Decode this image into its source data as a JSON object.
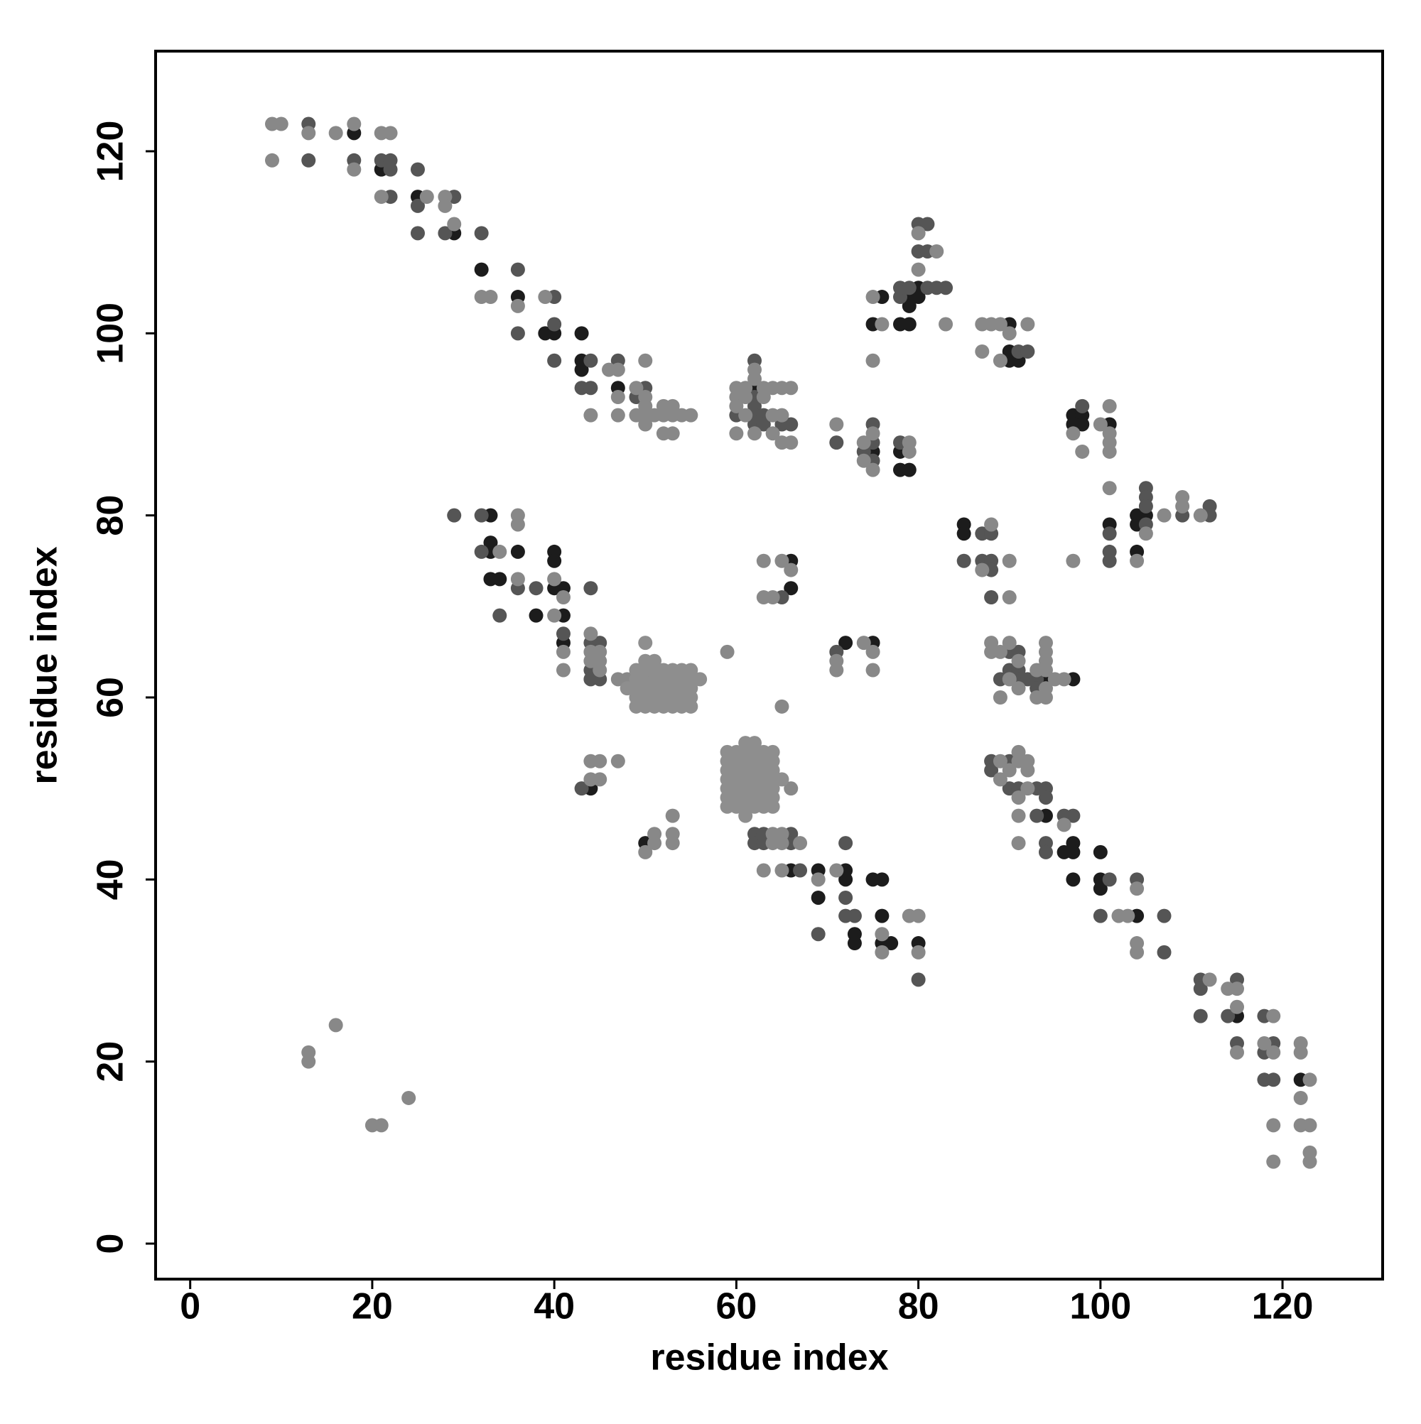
{
  "chart_data": {
    "type": "scatter",
    "xlabel": "residue index",
    "ylabel": "residue index",
    "xlim": [
      -3.8,
      131
    ],
    "ylim": [
      -3.9,
      131
    ],
    "xticks": [
      0,
      20,
      40,
      60,
      80,
      100,
      120
    ],
    "yticks": [
      0,
      20,
      40,
      60,
      80,
      100,
      120
    ],
    "series": [
      {
        "color": "#1c1c1c",
        "x": [
          18,
          21,
          25,
          29,
          32,
          36,
          39,
          40,
          43,
          43,
          43,
          47,
          62,
          76,
          80,
          79,
          80,
          79,
          75,
          78,
          79,
          75,
          78,
          78,
          79,
          90,
          90,
          90,
          91,
          97,
          98,
          97,
          98,
          101,
          104,
          105,
          101,
          104,
          104,
          33,
          33,
          33,
          36,
          40,
          40,
          33,
          34,
          40,
          41,
          38,
          41,
          41,
          66,
          66,
          72,
          75,
          85,
          85,
          94,
          97,
          44,
          50,
          66,
          69,
          72,
          72,
          75,
          76,
          69,
          76,
          73,
          73,
          76,
          77,
          80,
          94,
          97,
          96,
          97,
          100,
          97,
          100,
          100,
          104,
          115,
          122
        ],
        "values": [
          122,
          118,
          115,
          111,
          107,
          104,
          100,
          100,
          100,
          97,
          96,
          94,
          94,
          104,
          105,
          104,
          104,
          103,
          101,
          101,
          101,
          87,
          87,
          85,
          85,
          101,
          98,
          97,
          97,
          91,
          91,
          90,
          90,
          90,
          80,
          80,
          79,
          79,
          76,
          80,
          77,
          76,
          76,
          76,
          75,
          73,
          73,
          72,
          72,
          69,
          69,
          66,
          75,
          72,
          66,
          66,
          79,
          78,
          62,
          62,
          50,
          44,
          41,
          41,
          41,
          40,
          40,
          40,
          38,
          36,
          34,
          33,
          33,
          33,
          33,
          47,
          44,
          43,
          43,
          43,
          40,
          40,
          39,
          36,
          25,
          18
        ]
      },
      {
        "color": "#555555",
        "x": [
          13,
          13,
          18,
          21,
          22,
          22,
          25,
          22,
          29,
          25,
          25,
          28,
          32,
          36,
          40,
          40,
          36,
          40,
          44,
          47,
          43,
          44,
          50,
          49,
          62,
          62,
          62,
          60,
          62,
          63,
          62,
          63,
          65,
          66,
          71,
          75,
          78,
          74,
          75,
          75,
          78,
          78,
          79,
          81,
          82,
          83,
          80,
          81,
          80,
          81,
          91,
          92,
          98,
          105,
          105,
          105,
          112,
          109,
          112,
          105,
          101,
          101,
          101,
          29,
          32,
          32,
          36,
          38,
          44,
          34,
          41,
          44,
          45,
          44,
          44,
          45,
          54,
          65,
          71,
          87,
          88,
          85,
          87,
          88,
          88,
          88,
          90,
          91,
          90,
          91,
          89,
          91,
          92,
          93,
          93,
          43,
          62,
          63,
          66,
          62,
          63,
          66,
          67,
          72,
          72,
          72,
          73,
          69,
          80,
          88,
          90,
          88,
          90,
          91,
          93,
          94,
          94,
          93,
          96,
          97,
          94,
          94,
          101,
          104,
          100,
          107,
          107,
          111,
          115,
          111,
          111,
          114,
          118,
          115,
          119,
          118,
          118,
          119
        ],
        "values": [
          123,
          119,
          119,
          119,
          119,
          118,
          118,
          115,
          115,
          114,
          111,
          111,
          111,
          107,
          104,
          101,
          100,
          97,
          97,
          97,
          94,
          94,
          94,
          93,
          97,
          93,
          92,
          91,
          91,
          91,
          90,
          90,
          90,
          90,
          88,
          88,
          88,
          87,
          90,
          86,
          104,
          105,
          105,
          105,
          105,
          105,
          109,
          109,
          112,
          112,
          98,
          98,
          92,
          83,
          82,
          81,
          81,
          80,
          80,
          79,
          78,
          76,
          75,
          80,
          80,
          76,
          72,
          72,
          72,
          69,
          67,
          66,
          66,
          63,
          62,
          62,
          60,
          71,
          65,
          78,
          78,
          75,
          75,
          75,
          74,
          71,
          65,
          65,
          63,
          63,
          62,
          62,
          62,
          62,
          61,
          50,
          45,
          45,
          45,
          44,
          44,
          44,
          41,
          44,
          38,
          36,
          36,
          34,
          29,
          53,
          53,
          52,
          50,
          50,
          50,
          50,
          49,
          47,
          47,
          47,
          44,
          43,
          40,
          40,
          36,
          36,
          32,
          29,
          29,
          28,
          25,
          25,
          25,
          22,
          22,
          21,
          18,
          18
        ]
      },
      {
        "color": "#888888",
        "x": [
          9,
          10,
          18,
          13,
          16,
          21,
          22,
          9,
          18,
          21,
          26,
          28,
          28,
          29,
          32,
          33,
          39,
          36,
          50,
          46,
          47,
          49,
          47,
          50,
          50,
          52,
          53,
          44,
          47,
          49,
          50,
          51,
          52,
          53,
          54,
          55,
          50,
          52,
          53,
          62,
          62,
          60,
          61,
          63,
          64,
          65,
          66,
          60,
          61,
          63,
          60,
          61,
          64,
          65,
          60,
          62,
          64,
          65,
          66,
          71,
          74,
          79,
          79,
          75,
          74,
          75,
          75,
          76,
          83,
          75,
          80,
          82,
          80,
          87,
          88,
          89,
          92,
          90,
          87,
          89,
          100,
          97,
          101,
          101,
          98,
          101,
          101,
          101,
          109,
          107,
          111,
          105,
          97,
          104,
          109,
          36,
          36,
          34,
          36,
          40,
          41,
          40,
          44,
          41,
          44,
          45,
          44,
          45,
          41,
          45,
          47,
          48,
          63,
          65,
          66,
          63,
          64,
          59,
          65,
          71,
          71,
          75,
          75,
          74,
          88,
          90,
          87,
          90,
          88,
          90,
          94,
          88,
          89,
          94,
          91,
          94,
          93,
          94,
          90,
          95,
          96,
          91,
          94,
          89,
          93,
          94,
          44,
          45,
          47,
          44,
          45,
          50,
          51,
          53,
          51,
          53,
          53,
          66,
          64,
          65,
          64,
          65,
          67,
          63,
          65,
          71,
          69,
          79,
          80,
          76,
          76,
          80,
          91,
          89,
          91,
          92,
          90,
          92,
          89,
          92,
          91,
          91,
          96,
          91,
          104,
          102,
          103,
          104,
          104,
          112,
          114,
          115,
          115,
          119,
          118,
          122,
          115,
          119,
          122,
          123,
          122,
          119,
          122,
          123,
          123,
          119,
          123,
          16,
          13,
          13,
          24,
          20,
          21
        ],
        "values": [
          123,
          123,
          123,
          122,
          122,
          122,
          122,
          119,
          118,
          115,
          115,
          115,
          114,
          112,
          104,
          104,
          104,
          103,
          97,
          96,
          96,
          94,
          93,
          93,
          92,
          92,
          92,
          91,
          91,
          91,
          91,
          91,
          91,
          91,
          91,
          91,
          90,
          89,
          89,
          96,
          95,
          94,
          94,
          94,
          94,
          94,
          94,
          93,
          93,
          93,
          92,
          91,
          91,
          91,
          89,
          89,
          89,
          88,
          88,
          90,
          88,
          88,
          87,
          89,
          86,
          85,
          104,
          101,
          101,
          97,
          107,
          109,
          111,
          101,
          101,
          101,
          101,
          100,
          98,
          97,
          90,
          89,
          89,
          88,
          87,
          87,
          92,
          83,
          81,
          80,
          80,
          78,
          75,
          75,
          82,
          80,
          79,
          76,
          73,
          73,
          71,
          69,
          67,
          65,
          65,
          65,
          64,
          64,
          63,
          63,
          62,
          62,
          75,
          75,
          74,
          71,
          71,
          65,
          59,
          64,
          63,
          65,
          63,
          66,
          79,
          75,
          74,
          71,
          66,
          66,
          66,
          65,
          65,
          65,
          64,
          64,
          63,
          63,
          62,
          62,
          62,
          61,
          61,
          60,
          60,
          60,
          53,
          53,
          53,
          51,
          51,
          43,
          45,
          45,
          44,
          44,
          47,
          50,
          45,
          45,
          44,
          44,
          44,
          41,
          41,
          41,
          40,
          36,
          36,
          34,
          32,
          32,
          54,
          53,
          53,
          53,
          52,
          52,
          51,
          50,
          49,
          47,
          46,
          44,
          39,
          36,
          36,
          33,
          32,
          29,
          28,
          28,
          26,
          25,
          22,
          22,
          21,
          21,
          21,
          18,
          16,
          13,
          13,
          13,
          10,
          9,
          9,
          24,
          21,
          20,
          16,
          13,
          13
        ]
      },
      {
        "color": "#8e8e8e",
        "x": [
          49,
          50,
          51,
          52,
          53,
          54,
          55,
          49,
          50,
          51,
          52,
          53,
          54,
          55,
          49,
          50,
          51,
          52,
          53,
          54,
          55,
          49,
          50,
          51,
          52,
          53,
          54,
          55,
          49,
          50,
          51,
          52,
          53,
          54,
          55,
          50,
          51,
          50,
          56,
          48,
          59,
          60,
          61,
          62,
          63,
          64,
          59,
          60,
          61,
          62,
          63,
          64,
          59,
          60,
          61,
          62,
          63,
          64,
          59,
          60,
          61,
          62,
          63,
          64,
          59,
          60,
          61,
          62,
          63,
          64,
          59,
          60,
          61,
          62,
          63,
          64,
          59,
          60,
          61,
          62,
          63,
          64,
          61,
          62,
          61,
          65
        ],
        "values": [
          59,
          59,
          59,
          59,
          59,
          59,
          59,
          60,
          60,
          60,
          60,
          60,
          60,
          60,
          61,
          61,
          61,
          61,
          61,
          61,
          61,
          62,
          62,
          62,
          62,
          62,
          62,
          62,
          63,
          63,
          63,
          63,
          63,
          63,
          63,
          64,
          64,
          66,
          62,
          61,
          48,
          48,
          48,
          48,
          48,
          48,
          49,
          49,
          49,
          49,
          49,
          49,
          50,
          50,
          50,
          50,
          50,
          50,
          51,
          51,
          51,
          51,
          51,
          51,
          52,
          52,
          52,
          52,
          52,
          52,
          53,
          53,
          53,
          53,
          53,
          53,
          54,
          54,
          54,
          54,
          54,
          54,
          55,
          55,
          47,
          51
        ]
      }
    ]
  }
}
